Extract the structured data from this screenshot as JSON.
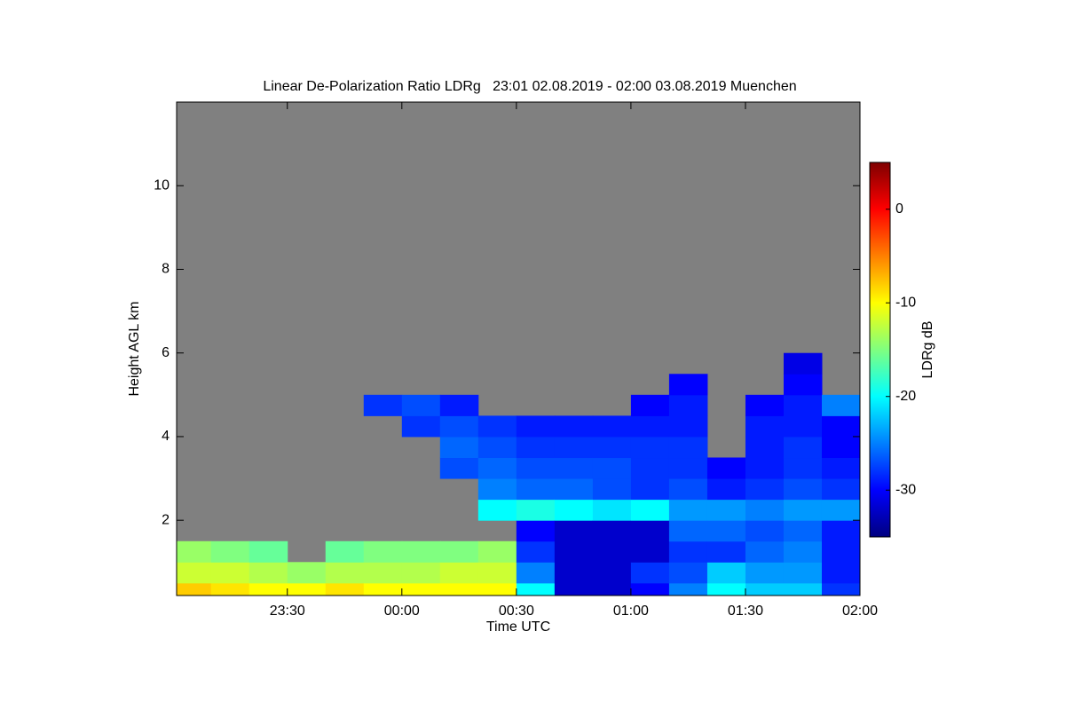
{
  "chart_data": {
    "type": "heatmap",
    "title": "Linear De-Polarization Ratio LDRg   23:01 02.08.2019 - 02:00 03.08.2019 Muenchen",
    "xlabel": "Time UTC",
    "ylabel": "Height AGL km",
    "colorbar_label": "LDRg dB",
    "colormap": "jet",
    "missing_color": "#808080",
    "xlim": [
      "2019-08-02T23:01",
      "2019-08-03T02:00"
    ],
    "xticks": [
      {
        "value": "2019-08-02T23:30",
        "label": "23:30"
      },
      {
        "value": "2019-08-03T00:00",
        "label": "00:00"
      },
      {
        "value": "2019-08-03T00:30",
        "label": "00:30"
      },
      {
        "value": "2019-08-03T01:00",
        "label": "01:00"
      },
      {
        "value": "2019-08-03T01:30",
        "label": "01:30"
      },
      {
        "value": "2019-08-03T02:00",
        "label": "02:00"
      }
    ],
    "ylim": [
      0.2,
      12
    ],
    "yticks": [
      2,
      4,
      6,
      8,
      10
    ],
    "zlim": [
      -35,
      5
    ],
    "zticks": [
      -30,
      -20,
      -10,
      0
    ],
    "x_bins": [
      "2019-08-02T23:01",
      "2019-08-02T23:10",
      "2019-08-02T23:20",
      "2019-08-02T23:30",
      "2019-08-02T23:40",
      "2019-08-02T23:50",
      "2019-08-03T00:00",
      "2019-08-03T00:10",
      "2019-08-03T00:20",
      "2019-08-03T00:30",
      "2019-08-03T00:40",
      "2019-08-03T00:50",
      "2019-08-03T01:00",
      "2019-08-03T01:10",
      "2019-08-03T01:20",
      "2019-08-03T01:30",
      "2019-08-03T01:40",
      "2019-08-03T01:50",
      "2019-08-03T02:00"
    ],
    "y_bins": [
      0.2,
      0.5,
      1,
      1.5,
      2,
      2.5,
      3,
      3.5,
      4,
      4.5,
      5,
      5.5,
      6
    ],
    "values": [
      [
        -8,
        -12,
        -14,
        null,
        null,
        null,
        null,
        null,
        null,
        null,
        null,
        null
      ],
      [
        -9,
        -12,
        -15,
        null,
        null,
        null,
        null,
        null,
        null,
        null,
        null,
        null
      ],
      [
        -10,
        -13,
        -16,
        null,
        null,
        null,
        null,
        null,
        null,
        null,
        null,
        null
      ],
      [
        -10,
        -14,
        null,
        null,
        null,
        null,
        null,
        null,
        null,
        null,
        null,
        null
      ],
      [
        -9,
        -13,
        -16,
        null,
        null,
        null,
        null,
        null,
        null,
        null,
        null,
        null
      ],
      [
        -10,
        -13,
        -15,
        null,
        null,
        null,
        null,
        null,
        null,
        -28,
        null,
        null
      ],
      [
        -10,
        -13,
        -15,
        null,
        null,
        null,
        null,
        null,
        -28,
        -27,
        null,
        null
      ],
      [
        -10,
        -12,
        -15,
        null,
        null,
        null,
        -27,
        -26,
        -27,
        -29,
        null,
        null
      ],
      [
        -10,
        -12,
        -14,
        null,
        -20,
        -25,
        -26,
        -27,
        -28,
        null,
        null,
        null
      ],
      [
        -20,
        -25,
        -28,
        -30,
        -19,
        -26,
        -27,
        -28,
        -29,
        null,
        null,
        null
      ],
      [
        -32,
        -32,
        -32,
        -32,
        -20,
        -26,
        -27,
        -28,
        -29,
        null,
        null,
        null
      ],
      [
        -32,
        -32,
        -32,
        -32,
        -21,
        -27,
        -27,
        -28,
        -29,
        null,
        null,
        null
      ],
      [
        -30,
        -28,
        -32,
        -32,
        -20,
        -28,
        -28,
        -28,
        -29,
        -30,
        null,
        null
      ],
      [
        -25,
        -27,
        -28,
        -26,
        -24,
        -27,
        -28,
        -28,
        -29,
        -29,
        -30,
        null
      ],
      [
        -20,
        -22,
        -28,
        -26,
        -24,
        -29,
        -30,
        null,
        null,
        null,
        null,
        null
      ],
      [
        -22,
        -24,
        -26,
        -27,
        -25,
        -28,
        -29,
        -29,
        -29,
        -30,
        null,
        null
      ],
      [
        -22,
        -24,
        -25,
        -26,
        -24,
        -27,
        -28,
        -28,
        -29,
        -29,
        -30,
        -31
      ],
      [
        -28,
        -29,
        -29,
        -29,
        -24,
        -28,
        -29,
        -30,
        -30,
        -25,
        null,
        null
      ]
    ]
  }
}
